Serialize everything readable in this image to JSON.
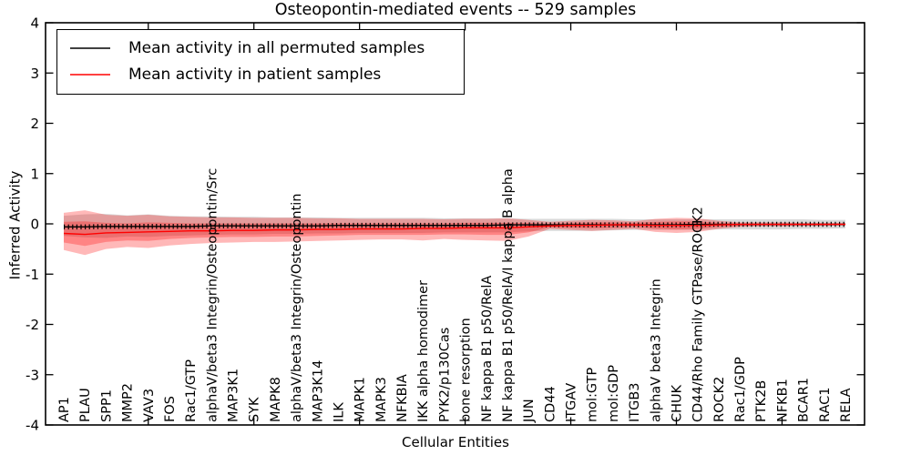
{
  "chart_data": {
    "type": "line",
    "title": "Osteopontin-mediated events -- 529 samples",
    "xlabel": "Cellular Entities",
    "ylabel": "Inferred Activity",
    "ylim": [
      -4,
      4
    ],
    "yticks": [
      4,
      3,
      2,
      1,
      0,
      -1,
      -2,
      -3,
      -4
    ],
    "grid": false,
    "legend": {
      "position": "upper-left",
      "entries": [
        {
          "label": "Mean activity in all permuted samples",
          "color": "#000000"
        },
        {
          "label": "Mean activity in patient samples",
          "color": "#ff0000"
        }
      ]
    },
    "colors": {
      "patient_line": "#ff0000",
      "permuted_line": "#000000",
      "patient_band": "rgba(255,0,0,0.28)",
      "permuted_band": "rgba(0,0,0,0.15)",
      "frame": "#000000"
    },
    "categories": [
      "AP1",
      "PLAU",
      "SPP1",
      "MMP2",
      "VAV3",
      "FOS",
      "Rac1/GTP",
      "alphaV/beta3 Integrin/Osteopontin/Src",
      "MAP3K1",
      "SYK",
      "MAPK8",
      "alphaV/beta3 Integrin/Osteopontin",
      "MAP3K14",
      "ILK",
      "MAPK1",
      "MAPK3",
      "NFKBIA",
      "IKK alpha homodimer",
      "PYK2/p130Cas",
      "bone resorption",
      "NF kappa B1 p50/RelA",
      "NF kappa B1 p50/RelA/I kappa B alpha",
      "JUN",
      "CD44",
      "ITGAV",
      "mol:GTP",
      "mol:GDP",
      "ITGB3",
      "alphaV beta3 Integrin",
      "CHUK",
      "CD44/Rho Family GTPase/ROCK2",
      "ROCK2",
      "Rac1/GDP",
      "PTK2B",
      "NFKB1",
      "BCAR1",
      "RAC1",
      "RELA"
    ],
    "series": [
      {
        "name": "permuted-mean",
        "label": "Mean activity in all permuted samples",
        "color": "#000000",
        "markers": true,
        "values": [
          -0.06,
          -0.06,
          -0.05,
          -0.05,
          -0.05,
          -0.05,
          -0.05,
          -0.04,
          -0.04,
          -0.04,
          -0.04,
          -0.04,
          -0.04,
          -0.03,
          -0.03,
          -0.03,
          -0.03,
          -0.03,
          -0.03,
          -0.03,
          -0.03,
          -0.02,
          -0.02,
          -0.02,
          -0.02,
          -0.02,
          -0.02,
          -0.02,
          -0.02,
          -0.02,
          -0.01,
          -0.01,
          -0.01,
          -0.01,
          -0.01,
          -0.01,
          -0.01,
          -0.01
        ]
      },
      {
        "name": "patient-mean",
        "label": "Mean activity in patient samples",
        "color": "#ff0000",
        "markers": false,
        "values": [
          -0.19,
          -0.21,
          -0.18,
          -0.17,
          -0.16,
          -0.15,
          -0.14,
          -0.14,
          -0.13,
          -0.13,
          -0.12,
          -0.12,
          -0.11,
          -0.11,
          -0.1,
          -0.1,
          -0.1,
          -0.09,
          -0.09,
          -0.08,
          -0.08,
          -0.08,
          -0.06,
          -0.04,
          -0.03,
          -0.03,
          -0.02,
          -0.02,
          -0.03,
          -0.03,
          -0.03,
          -0.02,
          -0.01,
          -0.01,
          -0.01,
          -0.01,
          -0.01,
          -0.01
        ]
      }
    ],
    "bands": [
      {
        "name": "permuted-range",
        "color": "rgba(0,0,0,0.15)",
        "upper": [
          0.16,
          0.19,
          0.2,
          0.17,
          0.19,
          0.16,
          0.15,
          0.15,
          0.14,
          0.14,
          0.13,
          0.13,
          0.13,
          0.12,
          0.12,
          0.12,
          0.12,
          0.12,
          0.11,
          0.11,
          0.11,
          0.11,
          0.1,
          0.1,
          0.1,
          0.1,
          0.1,
          0.09,
          0.09,
          0.09,
          0.09,
          0.09,
          0.09,
          0.09,
          0.09,
          0.09,
          0.08,
          0.08
        ],
        "lower": [
          -0.24,
          -0.27,
          -0.28,
          -0.25,
          -0.26,
          -0.24,
          -0.23,
          -0.22,
          -0.21,
          -0.21,
          -0.2,
          -0.2,
          -0.19,
          -0.19,
          -0.18,
          -0.18,
          -0.18,
          -0.18,
          -0.17,
          -0.17,
          -0.17,
          -0.17,
          -0.15,
          -0.14,
          -0.14,
          -0.14,
          -0.13,
          -0.12,
          -0.12,
          -0.12,
          -0.12,
          -0.11,
          -0.11,
          -0.11,
          -0.11,
          -0.1,
          -0.1,
          -0.09
        ]
      },
      {
        "name": "patient-range-outer",
        "color": "rgba(255,0,0,0.28)",
        "upper": [
          0.22,
          0.27,
          0.18,
          0.16,
          0.18,
          0.15,
          0.14,
          0.13,
          0.13,
          0.12,
          0.12,
          0.12,
          0.11,
          0.11,
          0.1,
          0.1,
          0.1,
          0.1,
          0.09,
          0.1,
          0.1,
          0.11,
          0.08,
          0.04,
          0.06,
          0.08,
          0.07,
          0.05,
          0.1,
          0.12,
          0.11,
          0.06,
          0.03,
          0.03,
          0.03,
          0.02,
          0.02,
          0.02
        ],
        "lower": [
          -0.52,
          -0.62,
          -0.5,
          -0.46,
          -0.48,
          -0.43,
          -0.4,
          -0.38,
          -0.37,
          -0.36,
          -0.36,
          -0.35,
          -0.34,
          -0.33,
          -0.32,
          -0.31,
          -0.31,
          -0.33,
          -0.3,
          -0.32,
          -0.33,
          -0.34,
          -0.25,
          -0.1,
          -0.12,
          -0.14,
          -0.12,
          -0.1,
          -0.16,
          -0.18,
          -0.16,
          -0.1,
          -0.06,
          -0.05,
          -0.05,
          -0.04,
          -0.04,
          -0.03
        ]
      },
      {
        "name": "patient-range-inner",
        "color": "rgba(255,0,0,0.28)",
        "upper": [
          0.04,
          0.05,
          0.02,
          0.01,
          0.03,
          0.02,
          0.01,
          0.01,
          0.01,
          0.01,
          0.01,
          0.01,
          0.01,
          0.01,
          0.01,
          0.01,
          0.01,
          0.01,
          0.01,
          0.02,
          0.02,
          0.02,
          0.02,
          0.0,
          0.02,
          0.03,
          0.03,
          0.02,
          0.04,
          0.05,
          0.05,
          0.02,
          0.01,
          0.01,
          0.01,
          0.01,
          0.01,
          0.01
        ],
        "lower": [
          -0.37,
          -0.44,
          -0.36,
          -0.33,
          -0.34,
          -0.3,
          -0.28,
          -0.27,
          -0.26,
          -0.26,
          -0.25,
          -0.25,
          -0.24,
          -0.23,
          -0.22,
          -0.22,
          -0.22,
          -0.22,
          -0.21,
          -0.21,
          -0.22,
          -0.22,
          -0.17,
          -0.07,
          -0.08,
          -0.09,
          -0.08,
          -0.06,
          -0.1,
          -0.11,
          -0.1,
          -0.06,
          -0.04,
          -0.03,
          -0.03,
          -0.03,
          -0.03,
          -0.02
        ]
      }
    ]
  }
}
